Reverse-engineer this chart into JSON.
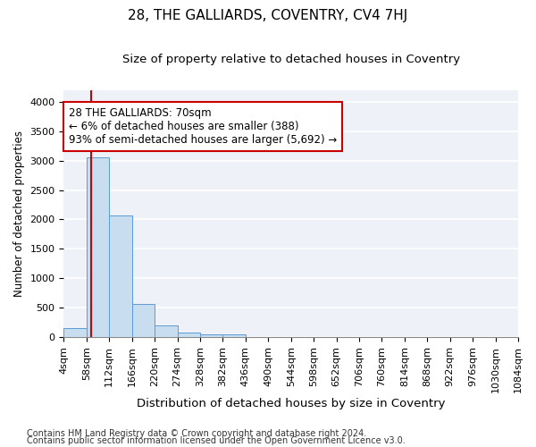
{
  "title1": "28, THE GALLIARDS, COVENTRY, CV4 7HJ",
  "title2": "Size of property relative to detached houses in Coventry",
  "xlabel": "Distribution of detached houses by size in Coventry",
  "ylabel": "Number of detached properties",
  "bin_edges": [
    4,
    58,
    112,
    166,
    220,
    274,
    328,
    382,
    436,
    490,
    544,
    598,
    652,
    706,
    760,
    814,
    868,
    922,
    976,
    1030,
    1084
  ],
  "bar_heights": [
    150,
    3060,
    2070,
    560,
    205,
    75,
    55,
    55,
    0,
    0,
    0,
    0,
    0,
    0,
    0,
    0,
    0,
    0,
    0,
    0
  ],
  "bar_color": "#c9ddf0",
  "bar_edge_color": "#5b9bd5",
  "property_line_x": 70,
  "property_line_color": "#cc0000",
  "annotation_text": "28 THE GALLIARDS: 70sqm\n← 6% of detached houses are smaller (388)\n93% of semi-detached houses are larger (5,692) →",
  "annotation_box_color": "white",
  "annotation_box_edge_color": "#cc0000",
  "ylim": [
    0,
    4200
  ],
  "yticks": [
    0,
    500,
    1000,
    1500,
    2000,
    2500,
    3000,
    3500,
    4000
  ],
  "footer1": "Contains HM Land Registry data © Crown copyright and database right 2024.",
  "footer2": "Contains public sector information licensed under the Open Government Licence v3.0.",
  "background_color": "#eef2f8",
  "grid_color": "white",
  "title1_fontsize": 11,
  "title2_fontsize": 9.5,
  "xlabel_fontsize": 9.5,
  "ylabel_fontsize": 8.5,
  "tick_fontsize": 8,
  "annotation_fontsize": 8.5,
  "footer_fontsize": 7
}
